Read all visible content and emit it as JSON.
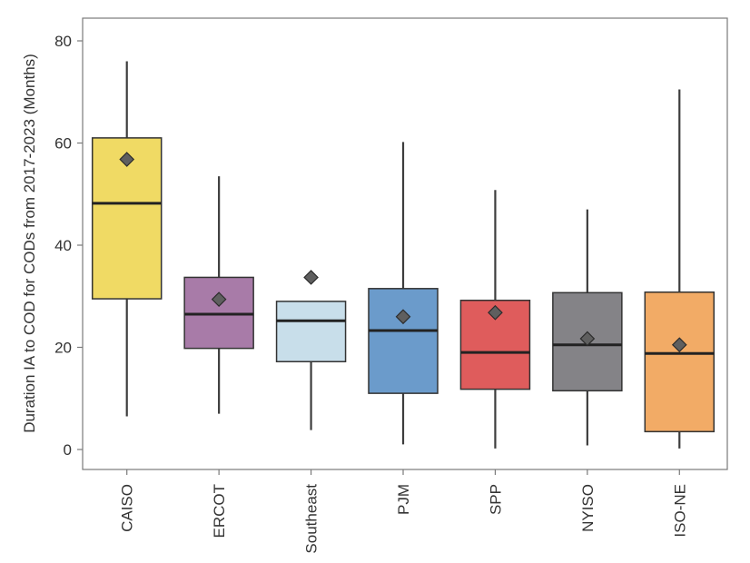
{
  "chart_data": {
    "type": "boxplot",
    "title": "",
    "xlabel": "",
    "ylabel": "Duration IA to COD for CODs from 2017-2023 (Months)",
    "ylim": [
      -4,
      84
    ],
    "yticks": [
      0,
      20,
      40,
      60,
      80
    ],
    "grid": false,
    "categories": [
      "CAISO",
      "ERCOT",
      "Southeast",
      "PJM",
      "SPP",
      "NYISO",
      "ISO-NE"
    ],
    "colors": [
      "#F0DA64",
      "#A87BA8",
      "#C8DEEA",
      "#6B9BCB",
      "#DF5C5C",
      "#848387",
      "#F2AB66"
    ],
    "series": [
      {
        "name": "CAISO",
        "whisker_low": 6.5,
        "q1": 29.5,
        "median": 48.2,
        "q3": 61.0,
        "whisker_high": 76.0,
        "mean": 56.8
      },
      {
        "name": "ERCOT",
        "whisker_low": 7.0,
        "q1": 19.8,
        "median": 26.5,
        "q3": 33.7,
        "whisker_high": 53.5,
        "mean": 29.4
      },
      {
        "name": "Southeast",
        "whisker_low": 3.8,
        "q1": 17.2,
        "median": 25.2,
        "q3": 29.0,
        "whisker_high": 29.0,
        "mean": 33.7
      },
      {
        "name": "PJM",
        "whisker_low": 1.0,
        "q1": 11.0,
        "median": 23.3,
        "q3": 31.5,
        "whisker_high": 60.2,
        "mean": 26.0
      },
      {
        "name": "SPP",
        "whisker_low": 0.2,
        "q1": 11.8,
        "median": 19.0,
        "q3": 29.2,
        "whisker_high": 50.8,
        "mean": 26.8
      },
      {
        "name": "NYISO",
        "whisker_low": 0.8,
        "q1": 11.5,
        "median": 20.5,
        "q3": 30.7,
        "whisker_high": 47.0,
        "mean": 21.7
      },
      {
        "name": "ISO-NE",
        "whisker_low": 0.2,
        "q1": 3.5,
        "median": 18.8,
        "q3": 30.8,
        "whisker_high": 70.5,
        "mean": 20.5
      }
    ]
  }
}
